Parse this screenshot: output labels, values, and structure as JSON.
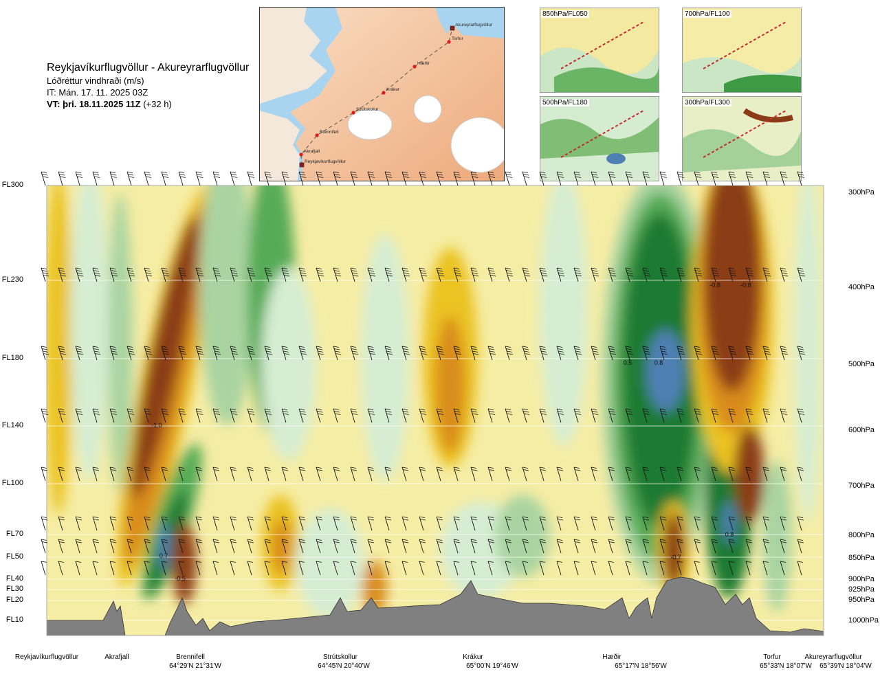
{
  "header": {
    "title": "Reykjavíkurflugvöllur - Akureyrarflugvöllur",
    "variable": "Lóðréttur vindhraði (m/s)",
    "issue_time": "IT: Mán. 17. 11. 2025 03Z",
    "valid_time_bold": "VT: þri. 18.11.2025 11Z",
    "valid_time_rest": " (+32 h)"
  },
  "map": {
    "places": [
      "Akureyrarflugvöllur",
      "Torfur",
      "Hæðir",
      "Krákur",
      "Strútskollur",
      "Brennifell",
      "Akrafjall",
      "Reykjavíkurflugvöllur"
    ]
  },
  "thumbnails": [
    "850hPa/FL050",
    "700hPa/FL100",
    "500hPa/FL180",
    "300hPa/FL300"
  ],
  "chart_data": {
    "type": "heatmap",
    "title": "Reykjavíkurflugvöllur - Akureyrarflugvöllur",
    "subtitle": "Lóðréttur vindhraði (m/s)",
    "flight_levels": [
      "FL300",
      "FL230",
      "FL180",
      "FL140",
      "FL100",
      "FL70",
      "FL50",
      "FL40",
      "FL30",
      "FL20",
      "FL10"
    ],
    "pressure_levels": [
      "300hPa",
      "400hPa",
      "500hPa",
      "600hPa",
      "700hPa",
      "800hPa",
      "850hPa",
      "900hPa",
      "925hPa",
      "950hPa",
      "1000hPa"
    ],
    "waypoints": [
      {
        "name": "Reykjavíkurflugvöllur",
        "coord": ""
      },
      {
        "name": "Akrafjall",
        "coord": ""
      },
      {
        "name": "Brennifell",
        "coord": "64°29'N 21°31'W"
      },
      {
        "name": "Strútskollur",
        "coord": "64°45'N 20°40'W"
      },
      {
        "name": "Krákur",
        "coord": "65°00'N 19°46'W"
      },
      {
        "name": "Hæðir",
        "coord": "65°17'N 18°56'W"
      },
      {
        "name": "Torfur",
        "coord": "65°33'N 18°07'W"
      },
      {
        "name": "Akureyrarflugvöllur",
        "coord": "65°39'N 18°04'W"
      }
    ],
    "annotations": [
      "-1.0",
      "0.7",
      "-0.5",
      "0.5",
      "0.8",
      "-0.8",
      "-0.8",
      "0.8",
      "-0.7"
    ],
    "colors": {
      "strong_down": "#8b3c16",
      "moderate_down": "#d98c1a",
      "down": "#ebc323",
      "weak_down": "#f6eda5",
      "neutral": "#ffffff",
      "weak_up": "#d5edd2",
      "up": "#a9d4a1",
      "moderate_up": "#57ab56",
      "strong_up": "#1c7a33",
      "very_strong_up": "#4f80b4",
      "terrain": "#808080"
    }
  }
}
